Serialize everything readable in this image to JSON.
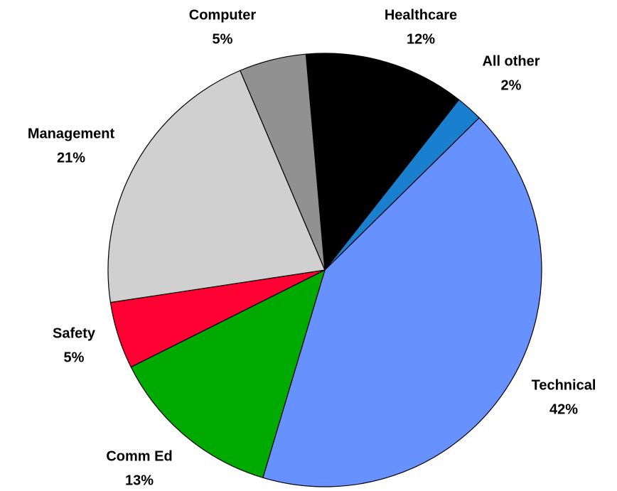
{
  "chart_data": {
    "type": "pie",
    "categories": [
      "Healthcare",
      "All other",
      "Technical",
      "Comm Ed",
      "Safety",
      "Management",
      "Computer"
    ],
    "values": [
      12,
      2,
      42,
      13,
      5,
      21,
      5
    ],
    "value_labels": [
      "12%",
      "2%",
      "42%",
      "13%",
      "5%",
      "21%",
      "5%"
    ],
    "colors": [
      "#000000",
      "#1a7fcf",
      "#6691ff",
      "#00aa00",
      "#ff0033",
      "#d0d0d0",
      "#919191"
    ]
  }
}
